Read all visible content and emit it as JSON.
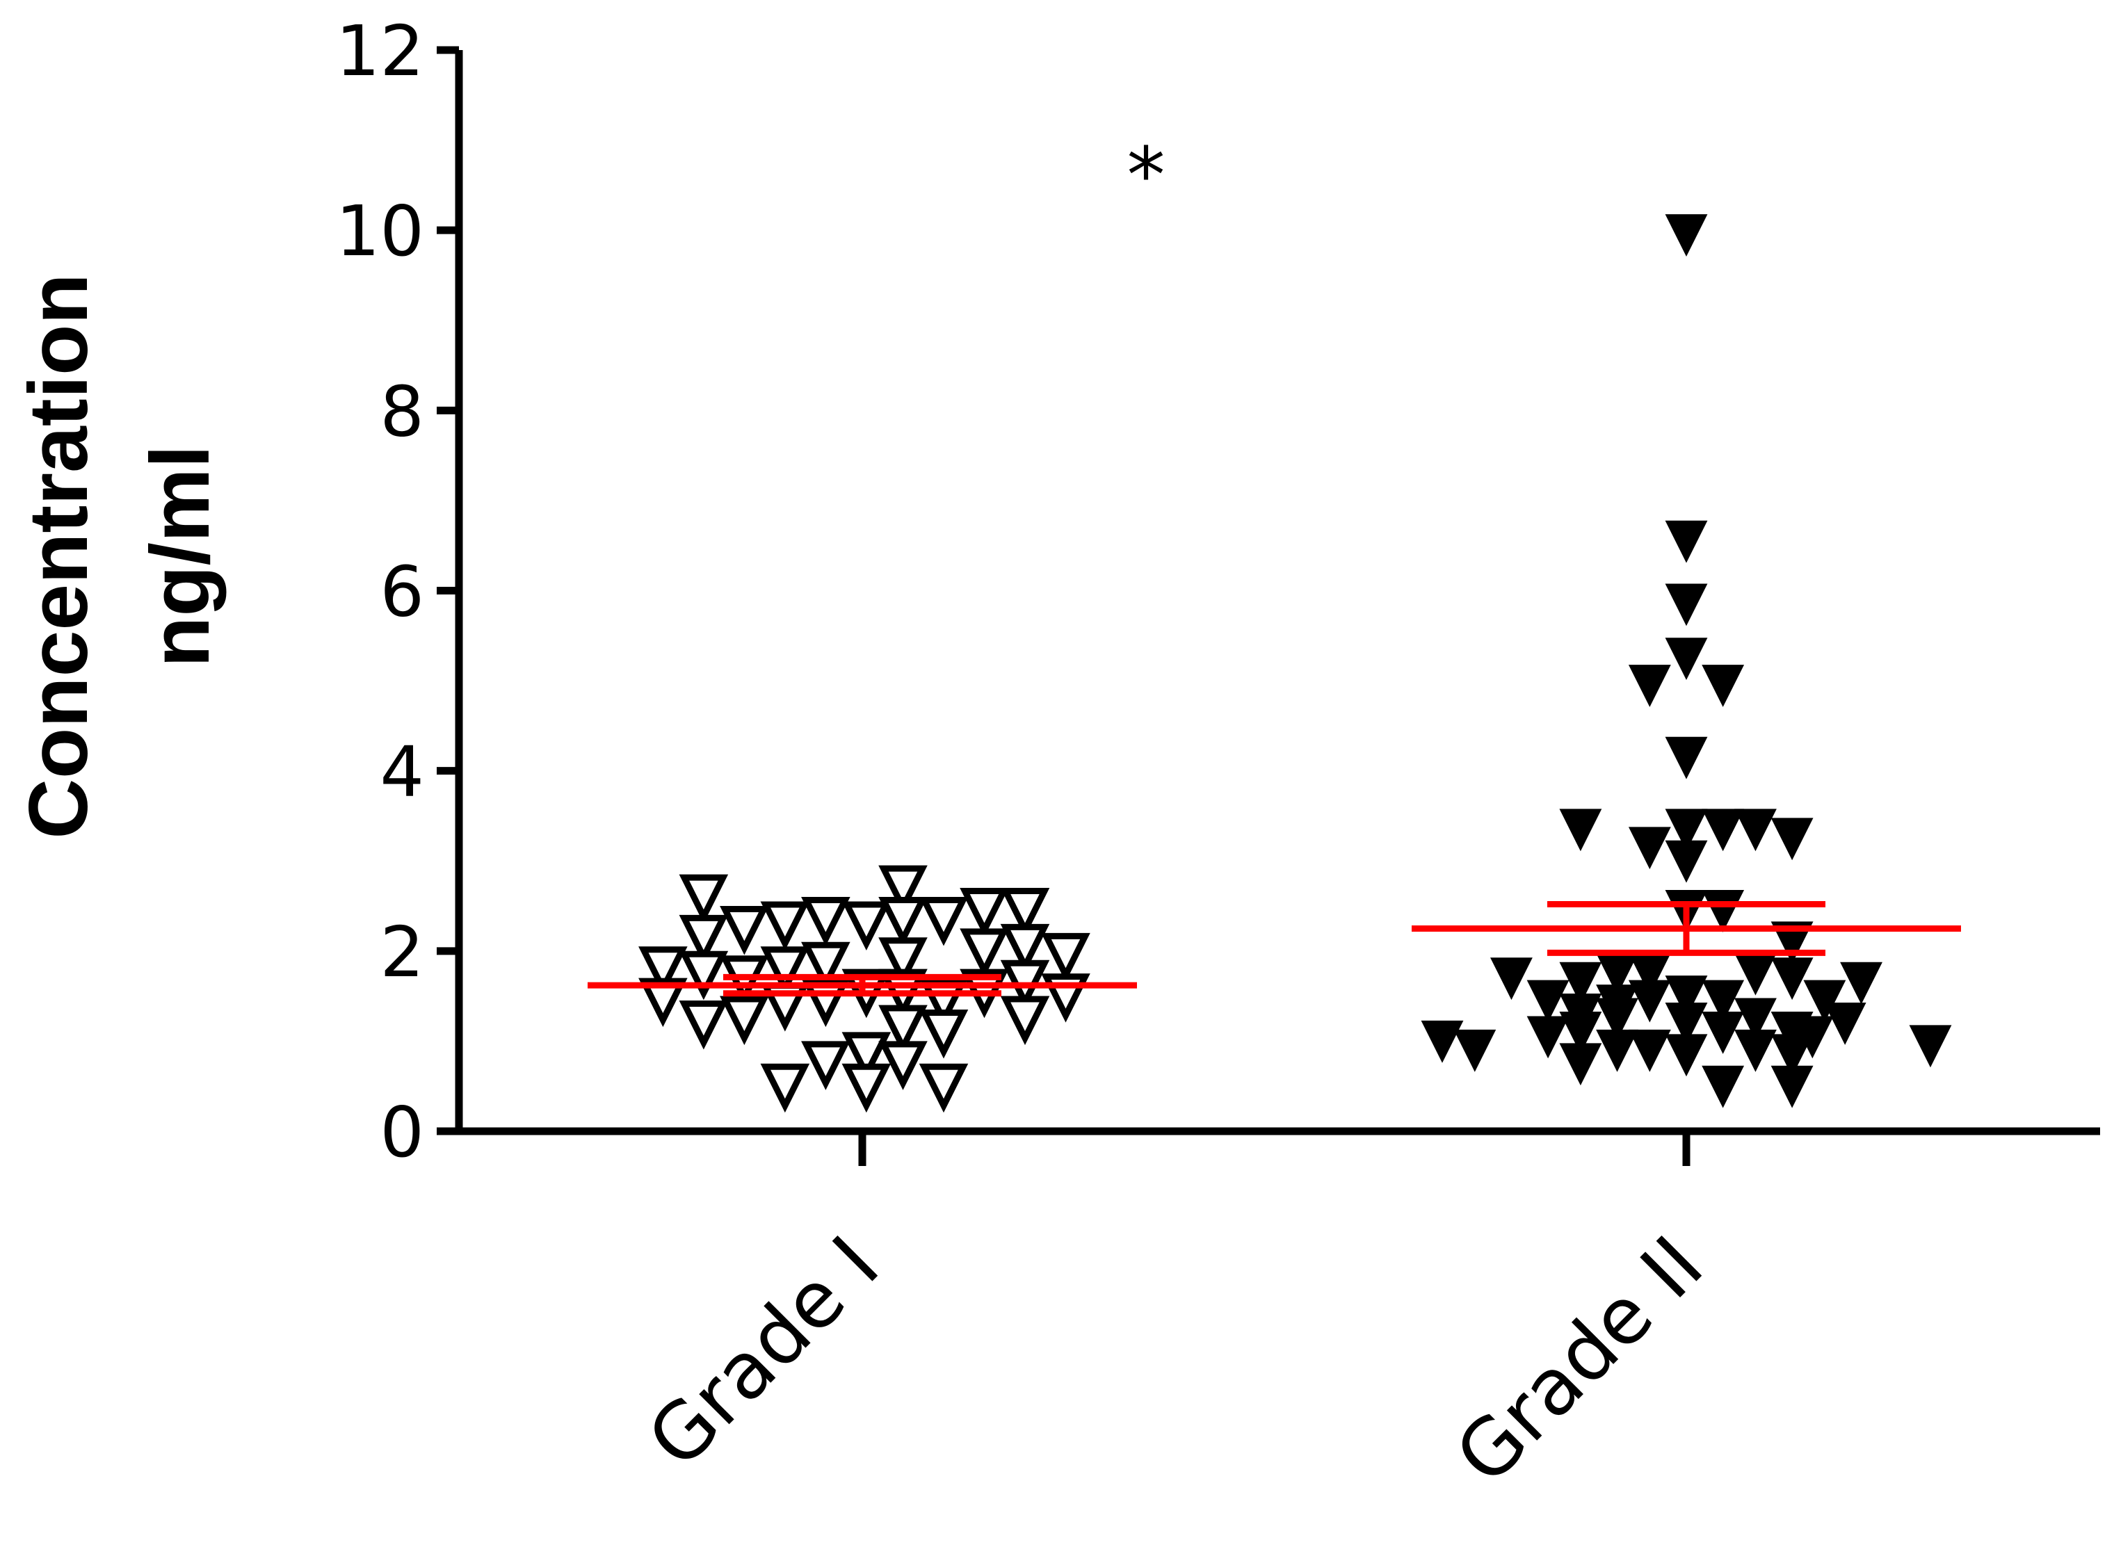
{
  "chart_data": {
    "type": "scatter",
    "ylabel_lines": [
      "Concentration",
      "ng/ml"
    ],
    "ylim": [
      0,
      12
    ],
    "yticks": [
      0,
      2,
      4,
      6,
      8,
      10,
      12
    ],
    "categories": [
      "Grade I",
      "Grade II"
    ],
    "annotation": "*",
    "colors": {
      "points": "#000000",
      "mean_sem": "#ff0000",
      "axis": "#000000"
    },
    "series": [
      {
        "category": "Grade I",
        "marker": "open-triangle-down",
        "mean": 1.62,
        "sem": [
          1.53,
          1.71
        ],
        "points": [
          {
            "x": -0.49,
            "y": 1.8
          },
          {
            "x": -0.49,
            "y": 1.45
          },
          {
            "x": -0.39,
            "y": 2.6
          },
          {
            "x": -0.39,
            "y": 2.15
          },
          {
            "x": -0.39,
            "y": 1.75
          },
          {
            "x": -0.39,
            "y": 1.2
          },
          {
            "x": -0.29,
            "y": 2.25
          },
          {
            "x": -0.29,
            "y": 1.7
          },
          {
            "x": -0.29,
            "y": 1.25
          },
          {
            "x": -0.19,
            "y": 2.3
          },
          {
            "x": -0.19,
            "y": 1.8
          },
          {
            "x": -0.19,
            "y": 1.4
          },
          {
            "x": -0.19,
            "y": 0.5
          },
          {
            "x": -0.09,
            "y": 2.35
          },
          {
            "x": -0.09,
            "y": 1.85
          },
          {
            "x": -0.09,
            "y": 1.45
          },
          {
            "x": -0.09,
            "y": 0.75
          },
          {
            "x": 0.01,
            "y": 2.3
          },
          {
            "x": 0.01,
            "y": 1.55
          },
          {
            "x": 0.01,
            "y": 0.85
          },
          {
            "x": 0.01,
            "y": 0.5
          },
          {
            "x": 0.1,
            "y": 2.7
          },
          {
            "x": 0.1,
            "y": 2.35
          },
          {
            "x": 0.1,
            "y": 1.9
          },
          {
            "x": 0.1,
            "y": 1.55
          },
          {
            "x": 0.1,
            "y": 1.15
          },
          {
            "x": 0.1,
            "y": 0.75
          },
          {
            "x": 0.2,
            "y": 2.35
          },
          {
            "x": 0.2,
            "y": 1.45
          },
          {
            "x": 0.2,
            "y": 1.1
          },
          {
            "x": 0.2,
            "y": 0.5
          },
          {
            "x": 0.3,
            "y": 2.45
          },
          {
            "x": 0.3,
            "y": 2.0
          },
          {
            "x": 0.3,
            "y": 1.55
          },
          {
            "x": 0.4,
            "y": 2.45
          },
          {
            "x": 0.4,
            "y": 2.05
          },
          {
            "x": 0.4,
            "y": 1.65
          },
          {
            "x": 0.4,
            "y": 1.25
          },
          {
            "x": 0.5,
            "y": 1.95
          },
          {
            "x": 0.5,
            "y": 1.5
          }
        ]
      },
      {
        "category": "Grade II",
        "marker": "filled-triangle-down",
        "mean": 2.25,
        "sem": [
          1.98,
          2.52
        ],
        "points": [
          {
            "x": 0.0,
            "y": 9.95
          },
          {
            "x": 0.0,
            "y": 6.55
          },
          {
            "x": 0.0,
            "y": 5.85
          },
          {
            "x": -0.09,
            "y": 4.95
          },
          {
            "x": 0.0,
            "y": 5.25
          },
          {
            "x": 0.09,
            "y": 4.95
          },
          {
            "x": 0.0,
            "y": 4.15
          },
          {
            "x": -0.26,
            "y": 3.35
          },
          {
            "x": -0.09,
            "y": 3.15
          },
          {
            "x": 0.0,
            "y": 3.0
          },
          {
            "x": 0.0,
            "y": 3.35
          },
          {
            "x": 0.09,
            "y": 3.35
          },
          {
            "x": 0.17,
            "y": 3.35
          },
          {
            "x": 0.26,
            "y": 3.25
          },
          {
            "x": 0.0,
            "y": 2.45
          },
          {
            "x": 0.09,
            "y": 2.45
          },
          {
            "x": 0.26,
            "y": 2.1
          },
          {
            "x": -0.43,
            "y": 1.7
          },
          {
            "x": -0.26,
            "y": 1.65
          },
          {
            "x": -0.17,
            "y": 1.75
          },
          {
            "x": -0.09,
            "y": 1.75
          },
          {
            "x": 0.17,
            "y": 1.75
          },
          {
            "x": 0.26,
            "y": 1.7
          },
          {
            "x": 0.43,
            "y": 1.65
          },
          {
            "x": -0.34,
            "y": 1.45
          },
          {
            "x": -0.17,
            "y": 1.4
          },
          {
            "x": -0.09,
            "y": 1.45
          },
          {
            "x": 0.0,
            "y": 1.5
          },
          {
            "x": 0.09,
            "y": 1.45
          },
          {
            "x": 0.34,
            "y": 1.45
          },
          {
            "x": -0.26,
            "y": 1.3
          },
          {
            "x": -0.17,
            "y": 1.25
          },
          {
            "x": 0.0,
            "y": 1.2
          },
          {
            "x": 0.09,
            "y": 1.1
          },
          {
            "x": 0.17,
            "y": 1.25
          },
          {
            "x": 0.26,
            "y": 1.1
          },
          {
            "x": 0.39,
            "y": 1.2
          },
          {
            "x": -0.6,
            "y": 1.0
          },
          {
            "x": -0.52,
            "y": 0.9
          },
          {
            "x": -0.34,
            "y": 1.05
          },
          {
            "x": -0.26,
            "y": 1.1
          },
          {
            "x": -0.26,
            "y": 0.75
          },
          {
            "x": -0.17,
            "y": 0.9
          },
          {
            "x": -0.09,
            "y": 0.9
          },
          {
            "x": 0.0,
            "y": 0.85
          },
          {
            "x": 0.09,
            "y": 0.5
          },
          {
            "x": 0.17,
            "y": 0.9
          },
          {
            "x": 0.26,
            "y": 0.85
          },
          {
            "x": 0.26,
            "y": 0.5
          },
          {
            "x": 0.31,
            "y": 1.05
          },
          {
            "x": 0.6,
            "y": 0.95
          }
        ]
      }
    ]
  }
}
